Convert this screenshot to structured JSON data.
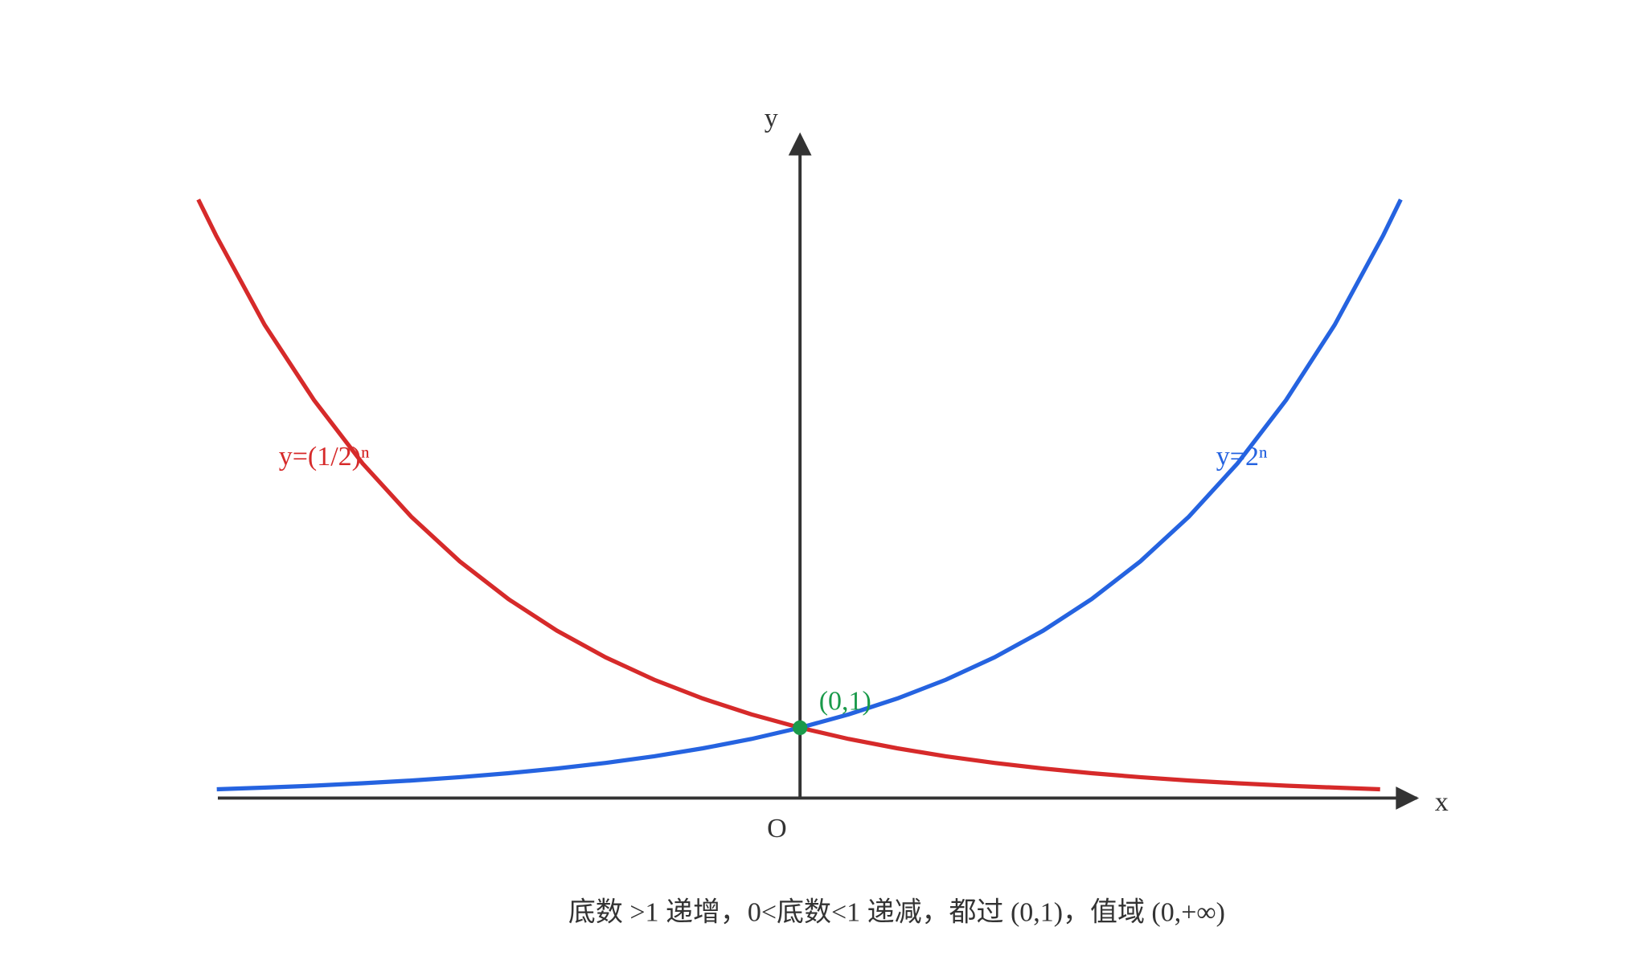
{
  "axes": {
    "y_label": "y",
    "x_label": "x",
    "origin_label": "O"
  },
  "curves": [
    {
      "label": "y=(1/2)ⁿ"
    },
    {
      "label": "y=2ⁿ"
    }
  ],
  "point": {
    "label": "(0,1)"
  },
  "caption": "底数 >1 递增，0<底数<1 递减，都过 (0,1)，值域 (0,+∞)"
}
